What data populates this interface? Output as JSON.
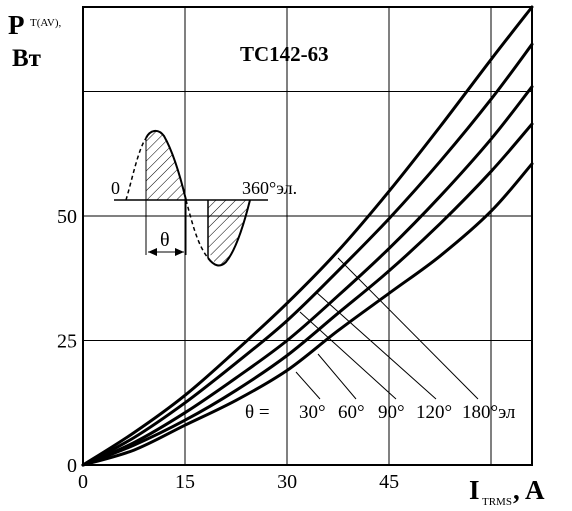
{
  "chart_data": {
    "type": "line",
    "title": "ТС142-63",
    "ylabel": {
      "main": "P",
      "sub": "T(AV),",
      "unit": "Вт"
    },
    "xlabel": {
      "main": "I",
      "sub": "TRMS",
      "unit": ", A"
    },
    "xlim": [
      0,
      66
    ],
    "ylim": [
      0,
      92
    ],
    "x_ticks": [
      {
        "value": 0,
        "label": "0"
      },
      {
        "value": 15,
        "label": "15"
      },
      {
        "value": 30,
        "label": "30"
      },
      {
        "value": 45,
        "label": "45"
      }
    ],
    "y_ticks": [
      {
        "value": 0,
        "label": "0"
      },
      {
        "value": 25,
        "label": "25"
      },
      {
        "value": 50,
        "label": "50"
      }
    ],
    "grid": true,
    "series": [
      {
        "name": "30°",
        "x": [
          0,
          7.5,
          15,
          22.5,
          30,
          37.5,
          45,
          52.5,
          60,
          66
        ],
        "y": [
          0,
          3,
          8,
          13,
          19,
          27,
          34.5,
          42,
          51,
          60.5
        ]
      },
      {
        "name": "60°",
        "x": [
          0,
          7.5,
          15,
          22.5,
          30,
          37.5,
          45,
          52.5,
          60,
          66
        ],
        "y": [
          0,
          4,
          9,
          15,
          22,
          30.5,
          39,
          48.5,
          59,
          68.5
        ]
      },
      {
        "name": "90°",
        "x": [
          0,
          7.5,
          15,
          22.5,
          30,
          37.5,
          45,
          52.5,
          60,
          66
        ],
        "y": [
          0,
          4.5,
          10.5,
          17.5,
          25,
          34,
          43.5,
          54,
          65.5,
          76
        ]
      },
      {
        "name": "120°",
        "x": [
          0,
          7.5,
          15,
          22.5,
          30,
          37.5,
          45,
          52.5,
          60,
          66
        ],
        "y": [
          0,
          5.5,
          12.5,
          20.5,
          29,
          39,
          49.5,
          61,
          73.5,
          84.5
        ]
      },
      {
        "name": "180°",
        "x": [
          0,
          7.5,
          15,
          22.5,
          30,
          37.5,
          45,
          52.5,
          60,
          66
        ],
        "y": [
          0,
          6.5,
          14,
          23,
          32.5,
          43,
          55,
          68,
          81.5,
          92
        ]
      }
    ],
    "curve_labels": {
      "prefix": "θ =",
      "values": [
        "30°",
        "60°",
        "90°",
        "120°",
        "180°эл"
      ]
    },
    "inset": {
      "start_label": "0",
      "end_label": "360°эл.",
      "angle_label": "θ"
    }
  }
}
